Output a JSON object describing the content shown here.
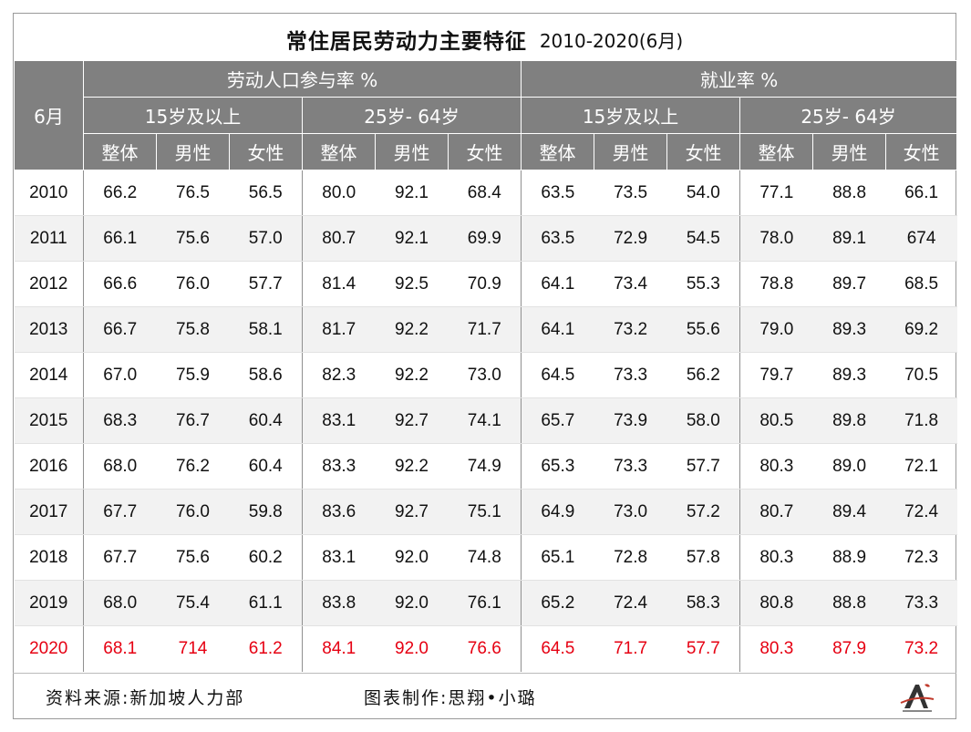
{
  "title": {
    "main": "常住居民劳动力主要特征",
    "sub": "2010-2020(6月)"
  },
  "headers": {
    "month": "6月",
    "groups": [
      "劳动人口参与率 %",
      "就业率 %"
    ],
    "age_groups": [
      "15岁及以上",
      "25岁- 64岁",
      "15岁及以上",
      "25岁- 64岁"
    ],
    "cols": [
      "整体",
      "男性",
      "女性",
      "整体",
      "男性",
      "女性",
      "整体",
      "男性",
      "女性",
      "整体",
      "男性",
      "女性"
    ]
  },
  "chart_data": {
    "type": "table",
    "title": "常住居民劳动力主要特征",
    "subtitle": "2010-2020(6月)",
    "row_header": "6月",
    "rows": [
      {
        "year": "2010",
        "values": [
          "66.2",
          "76.5",
          "56.5",
          "80.0",
          "92.1",
          "68.4",
          "63.5",
          "73.5",
          "54.0",
          "77.1",
          "88.8",
          "66.1"
        ]
      },
      {
        "year": "2011",
        "values": [
          "66.1",
          "75.6",
          "57.0",
          "80.7",
          "92.1",
          "69.9",
          "63.5",
          "72.9",
          "54.5",
          "78.0",
          "89.1",
          "674"
        ]
      },
      {
        "year": "2012",
        "values": [
          "66.6",
          "76.0",
          "57.7",
          "81.4",
          "92.5",
          "70.9",
          "64.1",
          "73.4",
          "55.3",
          "78.8",
          "89.7",
          "68.5"
        ]
      },
      {
        "year": "2013",
        "values": [
          "66.7",
          "75.8",
          "58.1",
          "81.7",
          "92.2",
          "71.7",
          "64.1",
          "73.2",
          "55.6",
          "79.0",
          "89.3",
          "69.2"
        ]
      },
      {
        "year": "2014",
        "values": [
          "67.0",
          "75.9",
          "58.6",
          "82.3",
          "92.2",
          "73.0",
          "64.5",
          "73.3",
          "56.2",
          "79.7",
          "89.3",
          "70.5"
        ]
      },
      {
        "year": "2015",
        "values": [
          "68.3",
          "76.7",
          "60.4",
          "83.1",
          "92.7",
          "74.1",
          "65.7",
          "73.9",
          "58.0",
          "80.5",
          "89.8",
          "71.8"
        ]
      },
      {
        "year": "2016",
        "values": [
          "68.0",
          "76.2",
          "60.4",
          "83.3",
          "92.2",
          "74.9",
          "65.3",
          "73.3",
          "57.7",
          "80.3",
          "89.0",
          "72.1"
        ]
      },
      {
        "year": "2017",
        "values": [
          "67.7",
          "76.0",
          "59.8",
          "83.6",
          "92.7",
          "75.1",
          "64.9",
          "73.0",
          "57.2",
          "80.7",
          "89.4",
          "72.4"
        ]
      },
      {
        "year": "2018",
        "values": [
          "67.7",
          "75.6",
          "60.2",
          "83.1",
          "92.0",
          "74.8",
          "65.1",
          "72.8",
          "57.8",
          "80.3",
          "88.9",
          "72.3"
        ]
      },
      {
        "year": "2019",
        "values": [
          "68.0",
          "75.4",
          "61.1",
          "83.8",
          "92.0",
          "76.1",
          "65.2",
          "72.4",
          "58.3",
          "80.8",
          "88.8",
          "73.3"
        ]
      },
      {
        "year": "2020",
        "values": [
          "68.1",
          "714",
          "61.2",
          "84.1",
          "92.0",
          "76.6",
          "64.5",
          "71.7",
          "57.7",
          "80.3",
          "87.9",
          "73.2"
        ],
        "highlight": true
      }
    ]
  },
  "footer": {
    "source": "资料来源:新加坡人力部",
    "author": "图表制作:思翔•小璐"
  },
  "colors": {
    "header_bg": "#808080",
    "header_text": "#ffffff",
    "alt_row": "#f2f2f2",
    "highlight": "#e60012"
  },
  "logo_icon": "logo-icon"
}
